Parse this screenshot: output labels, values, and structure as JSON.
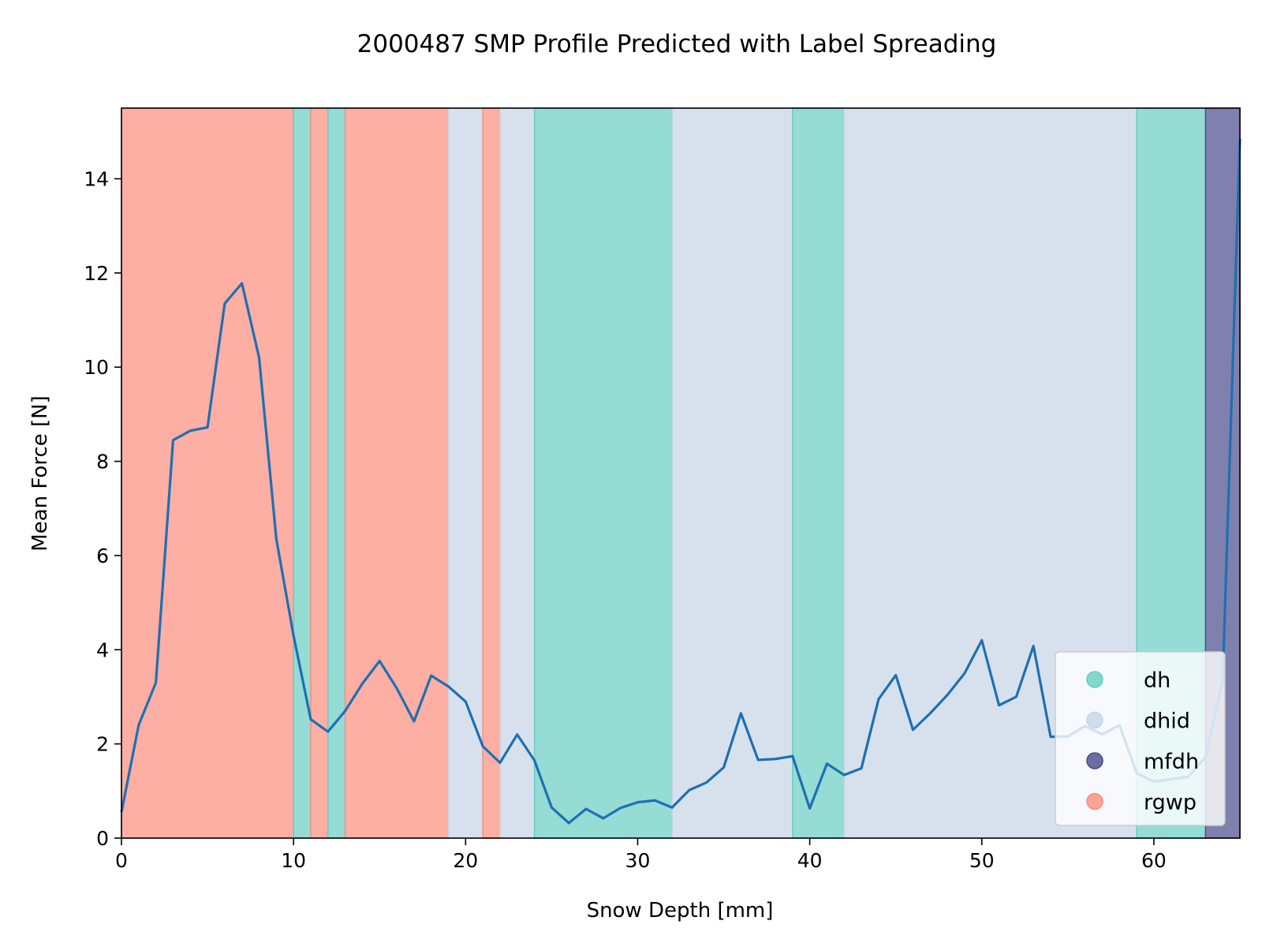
{
  "chart_data": {
    "type": "line",
    "title": "2000487 SMP Profile Predicted with Label Spreading",
    "xlabel": "Snow Depth [mm]",
    "ylabel": "Mean Force [N]",
    "xlim": [
      0,
      65
    ],
    "ylim": [
      0,
      15.5
    ],
    "xticks": [
      0,
      10,
      20,
      30,
      40,
      50,
      60
    ],
    "yticks": [
      0,
      2,
      4,
      6,
      8,
      10,
      12,
      14
    ],
    "grid": false,
    "legend_position": "lower right",
    "classes": [
      {
        "name": "dh",
        "color": "#66cdc2"
      },
      {
        "name": "dhid",
        "color": "#c6d4e6"
      },
      {
        "name": "mfdh",
        "color": "#4a4a8c"
      },
      {
        "name": "rgwp",
        "color": "#fc8d7d"
      }
    ],
    "segments": [
      {
        "start": 0,
        "end": 10,
        "label": "rgwp"
      },
      {
        "start": 10,
        "end": 11,
        "label": "dh"
      },
      {
        "start": 11,
        "end": 12,
        "label": "rgwp"
      },
      {
        "start": 12,
        "end": 13,
        "label": "dh"
      },
      {
        "start": 13,
        "end": 19,
        "label": "rgwp"
      },
      {
        "start": 19,
        "end": 21,
        "label": "dhid"
      },
      {
        "start": 21,
        "end": 22,
        "label": "rgwp"
      },
      {
        "start": 22,
        "end": 24,
        "label": "dhid"
      },
      {
        "start": 24,
        "end": 32,
        "label": "dh"
      },
      {
        "start": 32,
        "end": 39,
        "label": "dhid"
      },
      {
        "start": 39,
        "end": 42,
        "label": "dh"
      },
      {
        "start": 42,
        "end": 59,
        "label": "dhid"
      },
      {
        "start": 59,
        "end": 63,
        "label": "dh"
      },
      {
        "start": 63,
        "end": 65,
        "label": "mfdh"
      }
    ],
    "series": [
      {
        "color": "#1f6fb2",
        "x": [
          0,
          1,
          2,
          3,
          4,
          5,
          6,
          7,
          8,
          9,
          10,
          11,
          12,
          13,
          14,
          15,
          16,
          17,
          18,
          19,
          20,
          21,
          22,
          23,
          24,
          25,
          26,
          27,
          28,
          29,
          30,
          31,
          32,
          33,
          34,
          35,
          36,
          37,
          38,
          39,
          40,
          41,
          42,
          43,
          44,
          45,
          46,
          47,
          48,
          49,
          50,
          51,
          52,
          53,
          54,
          55,
          56,
          57,
          58,
          59,
          60,
          61,
          62,
          63,
          64,
          65
        ],
        "y": [
          0.55,
          2.4,
          3.3,
          8.45,
          8.65,
          8.72,
          11.35,
          11.78,
          10.2,
          6.35,
          4.3,
          2.52,
          2.26,
          2.7,
          3.28,
          3.76,
          3.18,
          2.48,
          3.45,
          3.22,
          2.9,
          1.95,
          1.6,
          2.2,
          1.65,
          0.65,
          0.32,
          0.62,
          0.42,
          0.64,
          0.76,
          0.8,
          0.65,
          1.02,
          1.18,
          1.5,
          2.65,
          1.66,
          1.68,
          1.74,
          0.63,
          1.58,
          1.34,
          1.48,
          2.95,
          3.46,
          2.3,
          2.65,
          3.04,
          3.5,
          4.2,
          2.82,
          3.0,
          4.08,
          2.15,
          2.16,
          2.38,
          2.2,
          2.4,
          1.38,
          1.2,
          1.25,
          1.3,
          1.72,
          3.35,
          14.85
        ]
      }
    ]
  }
}
